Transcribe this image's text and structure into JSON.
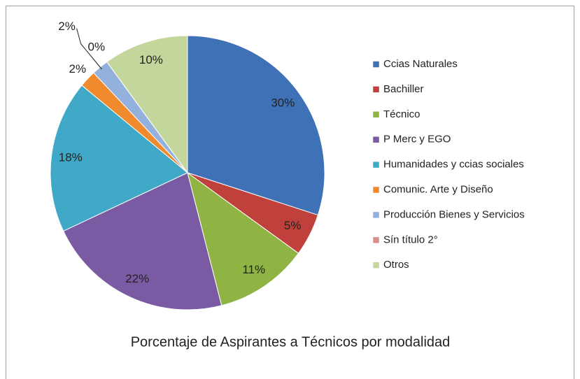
{
  "chart_data": {
    "type": "pie",
    "title": "Porcentaje de Aspirantes a Técnicos por modalidad",
    "categories": [
      "Ccias Naturales",
      "Bachiller",
      "Técnico",
      "P Merc y EGO",
      "Humanidades y ccias sociales",
      "Comunic. Arte y Diseño",
      "Producción Bienes y Servicios",
      "Sín título 2°",
      "Otros"
    ],
    "values": [
      30,
      5,
      11,
      22,
      18,
      2,
      2,
      0,
      10
    ],
    "value_labels": [
      "30%",
      "5%",
      "11%",
      "22%",
      "18%",
      "2%",
      "2%",
      "0%",
      "10%"
    ],
    "colors": [
      "#3f71b6",
      "#c0403c",
      "#8fb444",
      "#7a5aa3",
      "#3fa9c7",
      "#f08a2c",
      "#93b1dc",
      "#d98e8c",
      "#c3d69b"
    ],
    "legend": "right"
  }
}
